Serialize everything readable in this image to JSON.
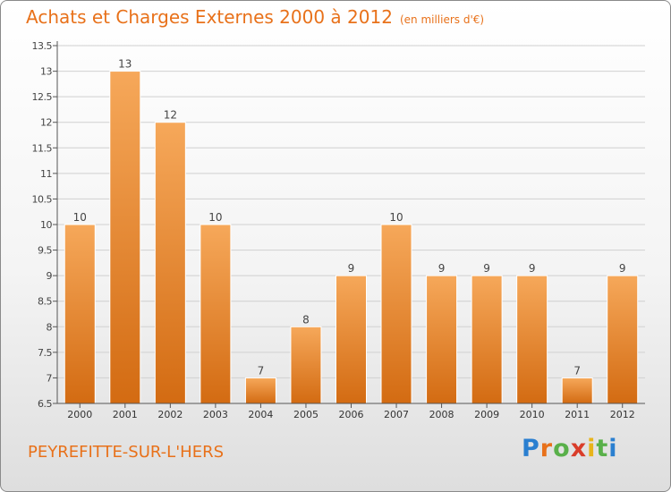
{
  "header": {
    "title": "Achats et Charges Externes 2000 à 2012",
    "unit": "(en milliers d'€)"
  },
  "footer": {
    "commune": "PEYREFITTE-SUR-L'HERS",
    "logo": [
      "P",
      "r",
      "o",
      "x",
      "i",
      "t",
      "i"
    ],
    "logo_colors": [
      "#2a7fd0",
      "#e8711a",
      "#59b04a",
      "#d93d2a",
      "#e8b41a",
      "#59b04a",
      "#2a7fd0"
    ]
  },
  "colors": {
    "bar": "#f0922e",
    "bar_light": "#f6a85a",
    "bar_dark": "#d36b12",
    "axis": "#555555",
    "grid": "#d0d0d0"
  },
  "chart_data": {
    "type": "bar",
    "title": "Achats et Charges Externes 2000 à 2012",
    "subtitle": "(en milliers d'€)",
    "categories": [
      "2000",
      "2001",
      "2002",
      "2003",
      "2004",
      "2005",
      "2006",
      "2007",
      "2008",
      "2009",
      "2010",
      "2011",
      "2012"
    ],
    "values": [
      10,
      13,
      12,
      10,
      7,
      8,
      9,
      10,
      9,
      9,
      9,
      7,
      9
    ],
    "data_labels": [
      "10",
      "13",
      "12",
      "10",
      "7",
      "8",
      "9",
      "10",
      "9",
      "9",
      "9",
      "7",
      "9"
    ],
    "ylim": [
      6.5,
      13.5
    ],
    "yticks": [
      6.5,
      7,
      7.5,
      8,
      8.5,
      9,
      9.5,
      10,
      10.5,
      11,
      11.5,
      12,
      12.5,
      13,
      13.5
    ],
    "ytick_labels": [
      "6.5",
      "7",
      "7.5",
      "8",
      "8.5",
      "9",
      "9.5",
      "10",
      "10.5",
      "11",
      "11.5",
      "12",
      "12.5",
      "13",
      "13.5"
    ],
    "xlabel": "",
    "ylabel": "",
    "grid": true
  }
}
